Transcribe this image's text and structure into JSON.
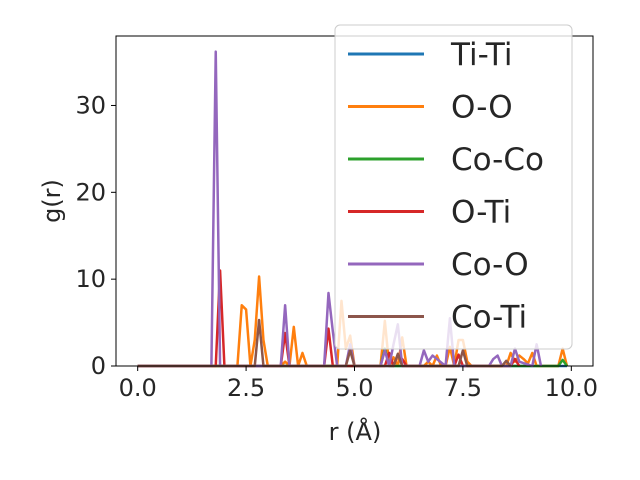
{
  "chart_data": {
    "type": "line",
    "title": "",
    "xlabel": "r (Å)",
    "ylabel": "g(r)",
    "xlim": [
      -0.5,
      10.5
    ],
    "ylim": [
      0,
      38
    ],
    "xticks": [
      0.0,
      2.5,
      5.0,
      7.5,
      10.0
    ],
    "xtick_labels": [
      "0.0",
      "2.5",
      "5.0",
      "7.5",
      "10.0"
    ],
    "yticks": [
      0,
      10,
      20,
      30
    ],
    "ytick_labels": [
      "0",
      "10",
      "20",
      "30"
    ],
    "grid": false,
    "legend": "top-right",
    "series": [
      {
        "name": "Ti-Ti",
        "color": "#1f77b4",
        "x": [
          0,
          1.6,
          1.7,
          1.8,
          1.9,
          9.7,
          9.8,
          9.9
        ],
        "y": [
          0,
          0,
          0,
          0,
          0,
          0,
          0,
          0
        ]
      },
      {
        "name": "O-O",
        "color": "#ff7f0e",
        "x": [
          0,
          2.2,
          2.3,
          2.4,
          2.5,
          2.6,
          2.7,
          2.8,
          2.9,
          3.0,
          3.1,
          3.2,
          3.3,
          3.4,
          3.5,
          3.6,
          3.7,
          3.8,
          3.9,
          4.0,
          4.1,
          4.2,
          4.3,
          4.4,
          4.5,
          4.6,
          4.7,
          4.8,
          4.9,
          5.0,
          5.5,
          5.6,
          5.7,
          5.8,
          5.9,
          6.0,
          6.1,
          6.2,
          6.3,
          6.4,
          6.5,
          6.6,
          6.7,
          6.8,
          6.9,
          7.0,
          7.1,
          7.2,
          7.3,
          7.4,
          7.5,
          7.6,
          7.7,
          8.5,
          8.6,
          8.7,
          8.8,
          8.9,
          9.0,
          9.1,
          9.2,
          9.3,
          9.4,
          9.5,
          9.6,
          9.7,
          9.8,
          9.9
        ],
        "y": [
          0,
          0,
          0,
          7,
          6.5,
          0,
          3,
          10.3,
          3,
          0,
          0,
          0,
          0,
          0.5,
          0,
          4.5,
          0,
          1.5,
          0,
          0,
          0,
          0,
          0,
          0,
          0,
          0,
          7.5,
          2,
          3.5,
          0,
          0,
          0,
          5.2,
          0,
          1,
          0,
          3.3,
          0,
          0,
          0,
          0,
          0,
          0.5,
          0,
          1.2,
          0,
          0,
          2.2,
          0,
          3,
          3,
          0.5,
          0,
          0,
          1.5,
          0.5,
          1.2,
          0.8,
          0.3,
          1.5,
          0,
          0,
          0,
          0,
          0,
          0,
          2,
          0
        ]
      },
      {
        "name": "Co-Co",
        "color": "#2ca02c",
        "x": [
          0,
          5.6,
          5.7,
          5.8,
          5.9,
          9.7,
          9.8,
          9.9
        ],
        "y": [
          0,
          0,
          2,
          0,
          0,
          0,
          0.7,
          0
        ]
      },
      {
        "name": "O-Ti",
        "color": "#d62728",
        "x": [
          0,
          1.8,
          1.9,
          2.0,
          2.1,
          3.3,
          3.4,
          3.5,
          3.6,
          4.3,
          4.4,
          4.5,
          4.6,
          5.7,
          5.8,
          5.9,
          6.0,
          6.1,
          6.2,
          7.3,
          7.4,
          7.5,
          7.6,
          8.6,
          8.7,
          8.8
        ],
        "y": [
          0,
          0,
          11,
          0,
          0,
          0,
          3.8,
          0,
          0,
          0,
          4.3,
          0,
          0,
          0,
          1.5,
          0,
          1.3,
          0.8,
          0,
          0,
          1.3,
          0,
          0,
          0,
          0.8,
          0
        ]
      },
      {
        "name": "Co-O",
        "color": "#9467bd",
        "x": [
          0,
          1.7,
          1.8,
          1.9,
          2.0,
          3.3,
          3.4,
          3.5,
          4.3,
          4.4,
          4.5,
          4.6,
          4.7,
          4.8,
          4.9,
          5.0,
          5.1,
          5.6,
          5.7,
          5.8,
          5.9,
          6.0,
          6.1,
          6.5,
          6.6,
          6.7,
          6.8,
          7.1,
          7.2,
          7.3,
          7.4,
          8.1,
          8.2,
          8.3,
          8.4,
          8.6,
          8.7,
          8.8,
          9.1,
          9.2,
          9.3
        ],
        "y": [
          0,
          0,
          36.2,
          0,
          0,
          0,
          7,
          0,
          0,
          8.4,
          4,
          0,
          0,
          0,
          2.5,
          0,
          0,
          0,
          1.8,
          0,
          2.5,
          4.8,
          0,
          0,
          1.8,
          0.5,
          1.2,
          0,
          5.5,
          0,
          0,
          0,
          0.8,
          1.2,
          0,
          0,
          2,
          0.5,
          0,
          2.5,
          0
        ]
      },
      {
        "name": "Co-Ti",
        "color": "#8c564b",
        "x": [
          0,
          2.7,
          2.8,
          2.9,
          3.0,
          4.8,
          4.9,
          5.0,
          5.9,
          6.0,
          6.1,
          7.4,
          7.5,
          7.6,
          8.4,
          8.5,
          8.6
        ],
        "y": [
          0,
          0,
          5.3,
          0,
          0,
          0,
          1.8,
          0,
          0,
          1.4,
          0,
          0,
          1.8,
          0,
          0,
          0.6,
          0
        ]
      }
    ]
  }
}
